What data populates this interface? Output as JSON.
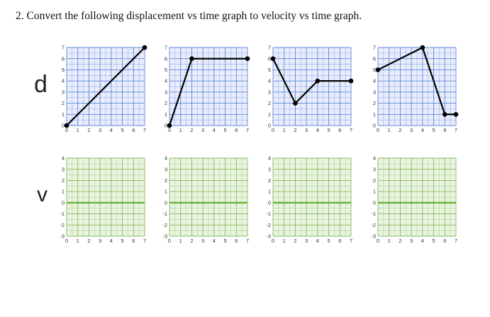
{
  "question": {
    "title": "2.  Convert the following displacement vs time graph to velocity vs time graph."
  },
  "row_labels": {
    "top": "d",
    "bottom": "v"
  },
  "colors": {
    "d_grid_fill": "#e9ecfb",
    "d_grid_line": "#4f7fd9",
    "v_grid_fill": "#eaf3e0",
    "v_grid_line": "#7ab84e",
    "v_zero_line": "#6cb33f",
    "trace": "#000000"
  },
  "chart_data": [
    {
      "type": "line",
      "quantity": "displacement",
      "x": [
        0,
        7
      ],
      "y": [
        0,
        7
      ],
      "xlim": [
        0,
        7
      ],
      "ylim": [
        0,
        7
      ],
      "xticks": [
        "0",
        "1",
        "2",
        "3",
        "4",
        "5",
        "6",
        "7"
      ],
      "yticks": [
        "0",
        "1",
        "2",
        "3",
        "4",
        "5",
        "6",
        "7"
      ],
      "grid": true
    },
    {
      "type": "line",
      "quantity": "displacement",
      "x": [
        0,
        2,
        7
      ],
      "y": [
        0,
        6,
        6
      ],
      "xlim": [
        0,
        7
      ],
      "ylim": [
        0,
        7
      ],
      "xticks": [
        "0",
        "1",
        "2",
        "3",
        "4",
        "5",
        "6",
        "7"
      ],
      "yticks": [
        "0",
        "1",
        "2",
        "3",
        "4",
        "5",
        "6",
        "7"
      ],
      "grid": true
    },
    {
      "type": "line",
      "quantity": "displacement",
      "x": [
        0,
        2,
        4,
        7
      ],
      "y": [
        6,
        2,
        4,
        4
      ],
      "xlim": [
        0,
        7
      ],
      "ylim": [
        0,
        7
      ],
      "xticks": [
        "0",
        "1",
        "2",
        "3",
        "4",
        "5",
        "6",
        "7"
      ],
      "yticks": [
        "0",
        "1",
        "2",
        "3",
        "4",
        "5",
        "6",
        "7"
      ],
      "grid": true
    },
    {
      "type": "line",
      "quantity": "displacement",
      "x": [
        0,
        4,
        6,
        7
      ],
      "y": [
        5,
        7,
        1,
        1
      ],
      "xlim": [
        0,
        7
      ],
      "ylim": [
        0,
        7
      ],
      "xticks": [
        "0",
        "1",
        "2",
        "3",
        "4",
        "5",
        "6",
        "7"
      ],
      "yticks": [
        "0",
        "1",
        "2",
        "3",
        "4",
        "5",
        "6",
        "7"
      ],
      "grid": true
    },
    {
      "type": "line",
      "quantity": "velocity",
      "x": [],
      "y": [],
      "xlim": [
        0,
        7
      ],
      "ylim": [
        -3,
        4
      ],
      "xticks": [
        "0",
        "1",
        "2",
        "3",
        "4",
        "5",
        "6",
        "7"
      ],
      "yticks": [
        "-3",
        "-2",
        "-1",
        "0",
        "1",
        "2",
        "3",
        "4"
      ],
      "grid": true
    },
    {
      "type": "line",
      "quantity": "velocity",
      "x": [],
      "y": [],
      "xlim": [
        0,
        7
      ],
      "ylim": [
        -3,
        4
      ],
      "xticks": [
        "0",
        "1",
        "2",
        "3",
        "4",
        "5",
        "6",
        "7"
      ],
      "yticks": [
        "-3",
        "-2",
        "-1",
        "0",
        "1",
        "2",
        "3",
        "4"
      ],
      "grid": true
    },
    {
      "type": "line",
      "quantity": "velocity",
      "x": [],
      "y": [],
      "xlim": [
        0,
        7
      ],
      "ylim": [
        -3,
        4
      ],
      "xticks": [
        "0",
        "1",
        "2",
        "3",
        "4",
        "5",
        "6",
        "7"
      ],
      "yticks": [
        "-3",
        "-2",
        "-1",
        "0",
        "1",
        "2",
        "3",
        "4"
      ],
      "grid": true
    },
    {
      "type": "line",
      "quantity": "velocity",
      "x": [],
      "y": [],
      "xlim": [
        0,
        7
      ],
      "ylim": [
        -3,
        4
      ],
      "xticks": [
        "0",
        "1",
        "2",
        "3",
        "4",
        "5",
        "6",
        "7"
      ],
      "yticks": [
        "-3",
        "-2",
        "-1",
        "0",
        "1",
        "2",
        "3",
        "4"
      ],
      "grid": true
    }
  ]
}
